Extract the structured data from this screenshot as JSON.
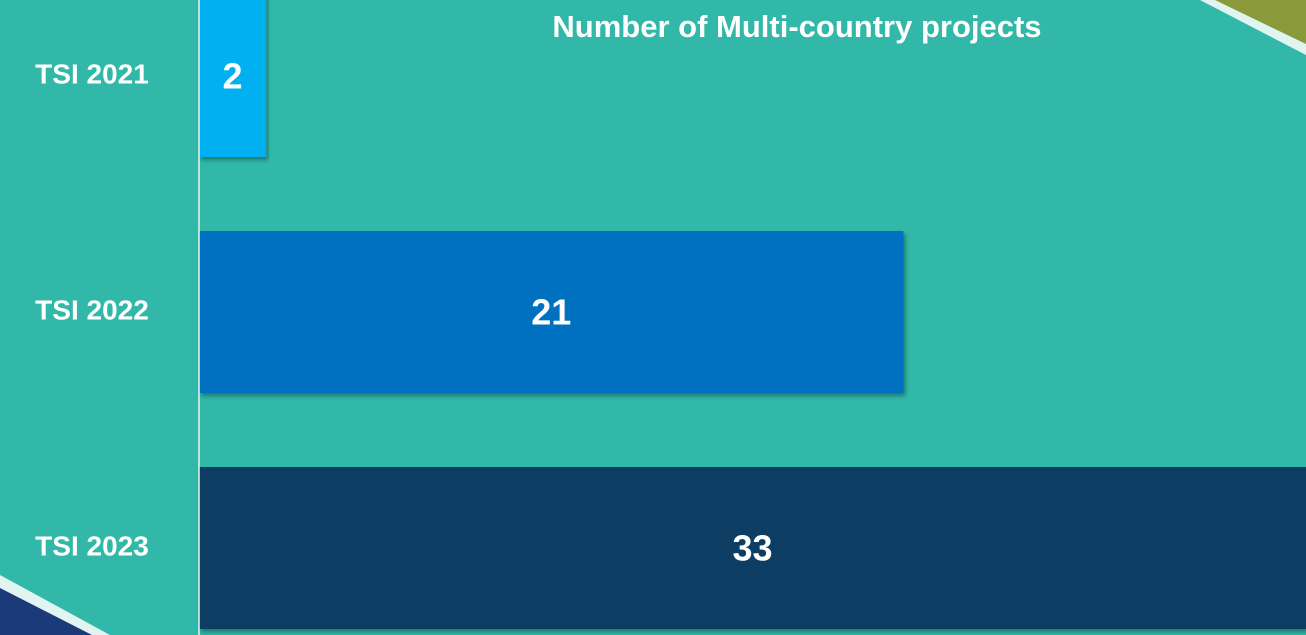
{
  "chart_data": {
    "type": "bar",
    "orientation": "horizontal",
    "title": "Number of Multi-country projects",
    "categories": [
      "TSI 2021",
      "TSI 2022",
      "TSI 2023"
    ],
    "values": [
      2,
      21,
      33
    ],
    "colors": [
      "#00b0f0",
      "#0070c0",
      "#0f3d63"
    ],
    "xlim": [
      0,
      33
    ]
  }
}
